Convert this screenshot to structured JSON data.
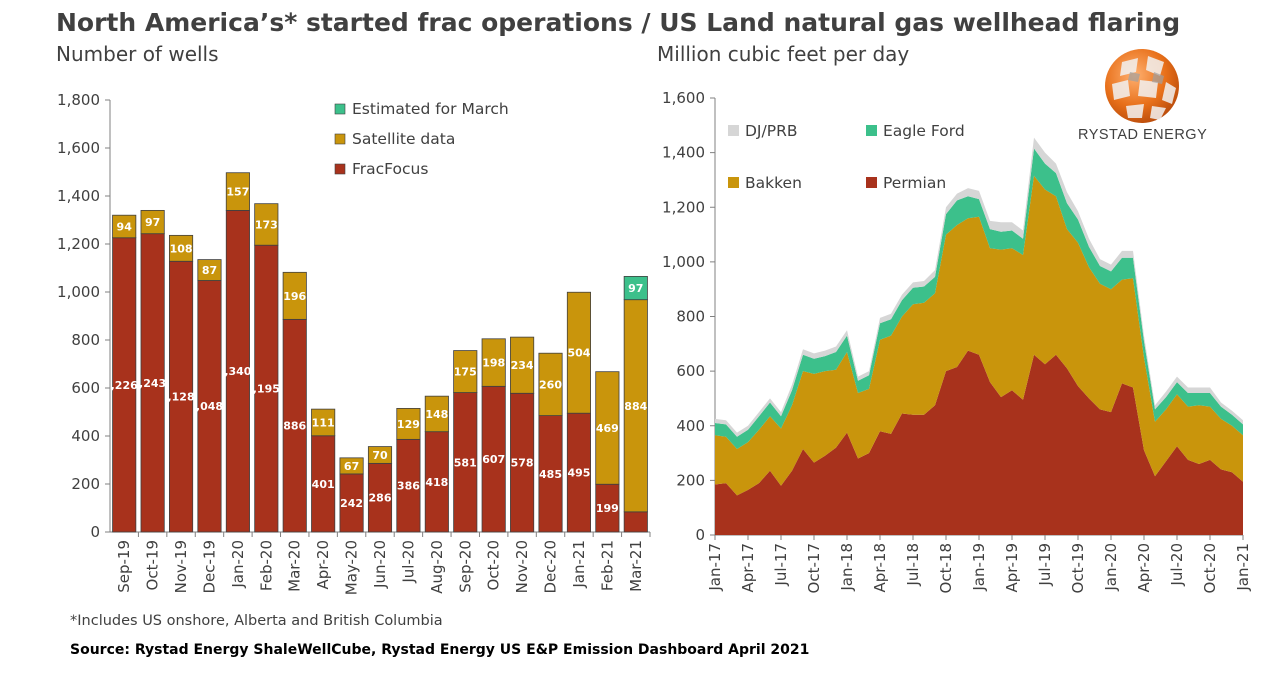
{
  "title": "North America’s* started frac operations / US Land natural gas wellhead flaring",
  "footnote": "*Includes US onshore, Alberta and British Columbia",
  "source": "Source: Rystad Energy ShaleWellCube, Rystad Energy US E&P Emission Dashboard April 2021",
  "logo": {
    "text": "RYSTAD ENERGY",
    "colors": [
      "#e8701a",
      "#b0b0b0"
    ]
  },
  "colors": {
    "fracfocus": "#a8321c",
    "satellite": "#c9950c",
    "estimated": "#3cc08b",
    "permian": "#a8321c",
    "bakken": "#c9950c",
    "eagle_ford": "#3cc08b",
    "dj_prb": "#d6d6d6"
  },
  "chart_data": [
    {
      "type": "bar",
      "stacked": true,
      "subtitle": "Number of wells",
      "categories": [
        "Sep-19",
        "Oct-19",
        "Nov-19",
        "Dec-19",
        "Jan-20",
        "Feb-20",
        "Mar-20",
        "Apr-20",
        "May-20",
        "Jun-20",
        "Jul-20",
        "Aug-20",
        "Sep-20",
        "Oct-20",
        "Nov-20",
        "Dec-20",
        "Jan-21",
        "Feb-21",
        "Mar-21"
      ],
      "series": [
        {
          "name": "FracFocus",
          "values": [
            1226,
            1243,
            1128,
            1048,
            1340,
            1195,
            886,
            401,
            242,
            286,
            386,
            418,
            581,
            607,
            578,
            485,
            495,
            199,
            84
          ]
        },
        {
          "name": "Satellite data",
          "values": [
            94,
            97,
            108,
            87,
            157,
            173,
            196,
            111,
            67,
            70,
            129,
            148,
            175,
            198,
            234,
            260,
            504,
            469,
            884
          ]
        },
        {
          "name": "Estimated for March",
          "values": [
            0,
            0,
            0,
            0,
            0,
            0,
            0,
            0,
            0,
            0,
            0,
            0,
            0,
            0,
            0,
            0,
            0,
            0,
            97
          ]
        }
      ],
      "labels": {
        "fracfocus": [
          ",226",
          ",243",
          ",128",
          ",048",
          ",340",
          ",195",
          "886",
          "401",
          "242",
          "286",
          "386",
          "418",
          "581",
          "607",
          "578",
          "485",
          "495",
          "199",
          ""
        ],
        "satellite": [
          "94",
          "97",
          "108",
          "87",
          "157",
          "173",
          "196",
          "111",
          "67",
          "70",
          "129",
          "148",
          "175",
          "198",
          "234",
          "260",
          "504",
          "469",
          "884"
        ],
        "estimated": [
          "",
          "",
          "",
          "",
          "",
          "",
          "",
          "",
          "",
          "",
          "",
          "",
          "",
          "",
          "",
          "",
          "",
          "",
          "97"
        ]
      },
      "ylim": [
        0,
        1800
      ],
      "yticks": [
        "0",
        "200",
        "400",
        "600",
        "800",
        "1,000",
        "1,200",
        "1,400",
        "1,600",
        "1,800"
      ],
      "legend_position": "top-right",
      "legend_order": [
        "Estimated for March",
        "Satellite data",
        "FracFocus"
      ]
    },
    {
      "type": "area",
      "stacked": true,
      "subtitle": "Million cubic feet per day",
      "x_start": "Jan-17",
      "x_end": "Jan-21",
      "x_tick_labels": [
        "Jan-17",
        "Apr-17",
        "Jul-17",
        "Oct-17",
        "Jan-18",
        "Apr-18",
        "Jul-18",
        "Oct-18",
        "Jan-19",
        "Apr-19",
        "Jul-19",
        "Oct-19",
        "Jan-20",
        "Apr-20",
        "Jul-20",
        "Oct-20",
        "Jan-21"
      ],
      "series": [
        {
          "name": "Permian",
          "values": [
            185,
            190,
            145,
            165,
            190,
            235,
            180,
            235,
            315,
            265,
            290,
            320,
            375,
            280,
            300,
            380,
            370,
            445,
            440,
            440,
            475,
            600,
            615,
            675,
            660,
            560,
            505,
            530,
            495,
            660,
            625,
            660,
            610,
            545,
            500,
            460,
            450,
            555,
            540,
            310,
            215,
            270,
            325,
            275,
            260,
            275,
            240,
            230,
            195
          ]
        },
        {
          "name": "Bakken",
          "values": [
            180,
            170,
            170,
            175,
            195,
            200,
            210,
            240,
            285,
            325,
            310,
            285,
            295,
            240,
            235,
            335,
            360,
            355,
            405,
            410,
            410,
            500,
            520,
            485,
            505,
            490,
            540,
            520,
            530,
            655,
            640,
            580,
            510,
            525,
            480,
            460,
            450,
            380,
            400,
            340,
            200,
            190,
            190,
            195,
            215,
            195,
            185,
            170,
            170
          ]
        },
        {
          "name": "Eagle Ford",
          "values": [
            45,
            45,
            45,
            45,
            50,
            50,
            45,
            55,
            60,
            55,
            55,
            65,
            60,
            45,
            50,
            60,
            60,
            60,
            60,
            60,
            60,
            75,
            90,
            80,
            65,
            70,
            65,
            65,
            60,
            100,
            95,
            85,
            95,
            85,
            75,
            65,
            65,
            80,
            75,
            60,
            45,
            45,
            45,
            50,
            45,
            50,
            45,
            40,
            40
          ]
        },
        {
          "name": "DJ/PRB",
          "values": [
            15,
            15,
            15,
            15,
            15,
            15,
            15,
            20,
            20,
            20,
            20,
            20,
            20,
            15,
            15,
            20,
            20,
            20,
            20,
            20,
            25,
            25,
            25,
            30,
            30,
            30,
            35,
            30,
            30,
            40,
            40,
            35,
            40,
            30,
            30,
            25,
            25,
            25,
            25,
            20,
            15,
            20,
            20,
            20,
            20,
            20,
            15,
            15,
            15
          ]
        }
      ],
      "ylim": [
        0,
        1600
      ],
      "yticks": [
        "0",
        "200",
        "400",
        "600",
        "800",
        "1,000",
        "1,200",
        "1,400",
        "1,600"
      ],
      "legend_position": "top-left",
      "legend_order": [
        "DJ/PRB",
        "Eagle Ford",
        "Bakken",
        "Permian"
      ]
    }
  ]
}
